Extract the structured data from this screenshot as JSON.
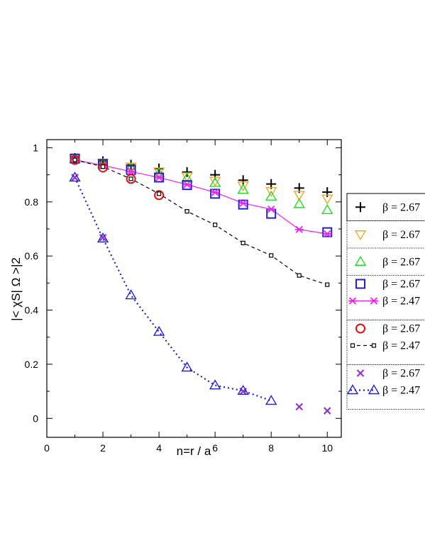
{
  "chart_data": {
    "type": "scatter",
    "title": "",
    "xlabel": "n=r / a",
    "ylabel": "|< χS| Ω >|2",
    "xlim": [
      0,
      10.5
    ],
    "ylim": [
      -0.07,
      1.03
    ],
    "xticks": [
      0,
      2,
      4,
      6,
      8,
      10
    ],
    "yticks": [
      0,
      0.2,
      0.4,
      0.6,
      0.8,
      1
    ],
    "grid": false,
    "legend_position": "right",
    "series": [
      {
        "name": "β = 2.67",
        "marker": "plus",
        "color": "#000000",
        "line": "none",
        "x": [
          1,
          2,
          3,
          4,
          5,
          6,
          7,
          8,
          9,
          10
        ],
        "y": [
          0.962,
          0.95,
          0.937,
          0.923,
          0.91,
          0.9,
          0.88,
          0.866,
          0.851,
          0.836
        ]
      },
      {
        "name": "β = 2.67",
        "marker": "triangle-down",
        "color": "#f5a623",
        "line": "none",
        "x": [
          1,
          2,
          3,
          4,
          5,
          6,
          7,
          8,
          9,
          10
        ],
        "y": [
          0.96,
          0.945,
          0.93,
          0.912,
          0.894,
          0.878,
          0.86,
          0.84,
          0.826,
          0.812
        ]
      },
      {
        "name": "β = 2.67",
        "marker": "triangle-up",
        "color": "#22dd22",
        "line": "none",
        "x": [
          1,
          2,
          3,
          4,
          5,
          6,
          7,
          8,
          9,
          10
        ],
        "y": [
          0.958,
          0.94,
          0.925,
          0.906,
          0.888,
          0.87,
          0.845,
          0.82,
          0.792,
          0.77
        ]
      },
      {
        "name": "β = 2.67",
        "marker": "square",
        "color": "#2222cc",
        "line": "none",
        "x": [
          1,
          2,
          3,
          4,
          5,
          6,
          7,
          8,
          10
        ],
        "y": [
          0.96,
          0.94,
          0.918,
          0.89,
          0.862,
          0.83,
          0.79,
          0.756,
          0.688
        ]
      },
      {
        "name": "β = 2.47",
        "marker": "star",
        "color": "#ee22ee",
        "line": "solid",
        "x": [
          1,
          2,
          3,
          4,
          5,
          6,
          7,
          8,
          9,
          10
        ],
        "y": [
          0.955,
          0.935,
          0.912,
          0.89,
          0.864,
          0.835,
          0.795,
          0.773,
          0.698,
          0.682
        ]
      },
      {
        "name": "β = 2.67",
        "marker": "circle",
        "color": "#dd1111",
        "line": "none",
        "x": [
          1,
          2,
          3,
          4
        ],
        "y": [
          0.955,
          0.927,
          0.885,
          0.825
        ]
      },
      {
        "name": "β = 2.47",
        "marker": "small-square",
        "color": "#000000",
        "line": "dashed",
        "x": [
          1,
          2,
          3,
          4,
          5,
          6,
          7,
          8,
          9,
          10
        ],
        "y": [
          0.955,
          0.93,
          0.885,
          0.83,
          0.765,
          0.715,
          0.648,
          0.602,
          0.528,
          0.494
        ]
      },
      {
        "name": "β = 2.67",
        "marker": "x",
        "color": "#9933cc",
        "line": "none",
        "x": [
          1,
          2,
          7,
          9,
          10
        ],
        "y": [
          0.89,
          0.668,
          0.1,
          0.043,
          0.028
        ]
      },
      {
        "name": "β = 2.47",
        "marker": "triangle-up",
        "color": "#2222cc",
        "line": "dotted",
        "x": [
          1,
          2,
          3,
          4,
          5,
          6,
          7,
          8
        ],
        "y": [
          0.89,
          0.665,
          0.455,
          0.32,
          0.188,
          0.122,
          0.102,
          0.065
        ]
      }
    ],
    "legend_groups": [
      [
        0
      ],
      [
        1
      ],
      [
        2
      ],
      [
        3,
        4
      ],
      [
        5,
        6
      ],
      [
        7,
        8
      ]
    ]
  }
}
